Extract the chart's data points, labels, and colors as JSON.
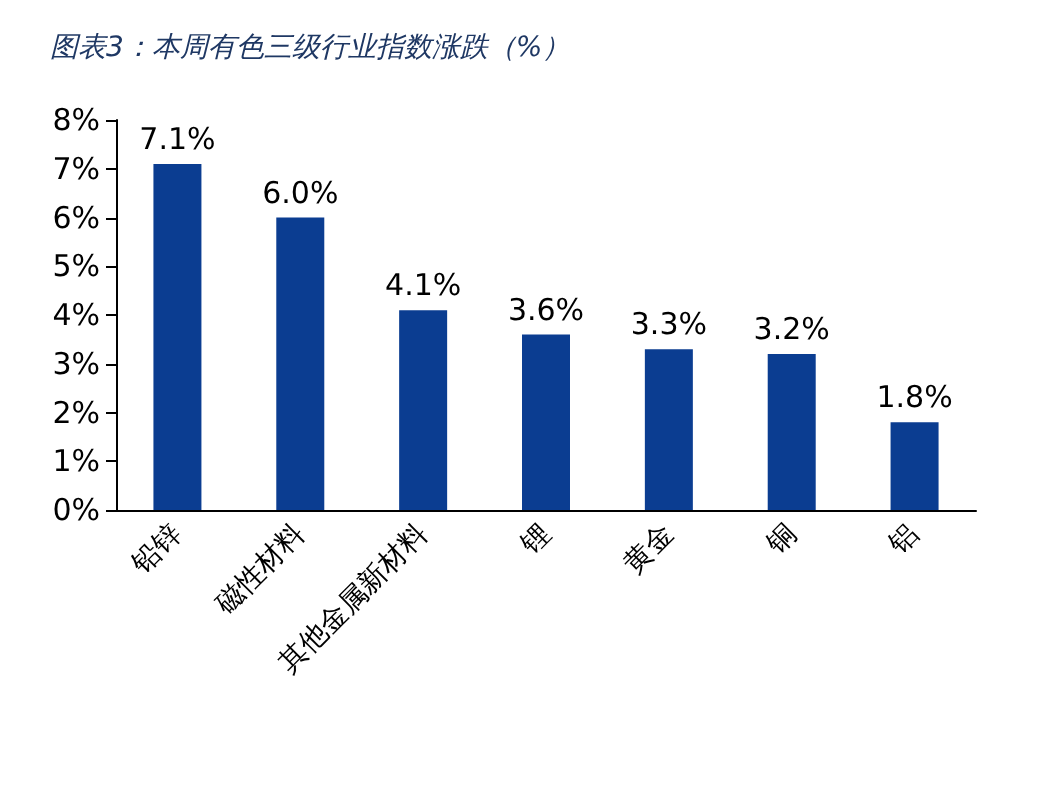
{
  "chart_data": {
    "type": "bar",
    "title": "图表3：本周有色三级行业指数涨跌（%）",
    "categories": [
      "铅锌",
      "磁性材料",
      "其他金属新材料",
      "锂",
      "黄金",
      "铜",
      "铝"
    ],
    "values": [
      7.1,
      6.0,
      4.1,
      3.6,
      3.3,
      3.2,
      1.8
    ],
    "value_labels": [
      "7.1%",
      "6.0%",
      "4.1%",
      "3.6%",
      "3.3%",
      "3.2%",
      "1.8%"
    ],
    "color": "#0b3d91",
    "ylim": [
      0,
      8
    ],
    "yticks": [
      {
        "value": 0,
        "label": "0%"
      },
      {
        "value": 1,
        "label": "1%"
      },
      {
        "value": 2,
        "label": "2%"
      },
      {
        "value": 3,
        "label": "3%"
      },
      {
        "value": 4,
        "label": "4%"
      },
      {
        "value": 5,
        "label": "5%"
      },
      {
        "value": 6,
        "label": "6%"
      },
      {
        "value": 7,
        "label": "7%"
      },
      {
        "value": 8,
        "label": "8%"
      }
    ],
    "grid": false
  }
}
